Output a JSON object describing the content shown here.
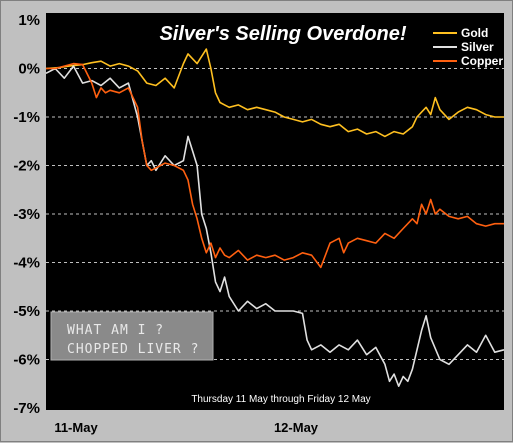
{
  "chart_data": {
    "type": "line",
    "title": "Silver's Selling Overdone!",
    "caption": "Thursday 11 May through Friday 12 May",
    "annotation": [
      "WHAT AM I ?",
      "CHOPPED LIVER ?"
    ],
    "x_labels": [
      "11-May",
      "12-May"
    ],
    "y_ticks": [
      "1%",
      "0%",
      "-1%",
      "-2%",
      "-3%",
      "-4%",
      "-5%",
      "-6%",
      "-7%"
    ],
    "ylim": [
      -7,
      1
    ],
    "xlim": [
      0,
      100
    ],
    "grid": true,
    "legend_placement": "top-right",
    "series": [
      {
        "name": "Gold",
        "color": "#ffc020",
        "x": [
          0,
          3,
          5,
          8,
          10,
          12,
          14,
          16,
          18,
          20,
          22,
          24,
          26,
          28,
          30,
          31,
          33,
          35,
          36,
          37,
          38,
          39,
          40,
          42,
          44,
          46,
          48,
          50,
          52,
          54,
          56,
          58,
          60,
          62,
          64,
          66,
          68,
          70,
          72,
          74,
          76,
          78,
          80,
          81,
          82,
          83,
          84,
          85,
          86,
          88,
          90,
          92,
          94,
          96,
          98,
          100
        ],
        "values": [
          0.0,
          0.02,
          0.05,
          0.08,
          0.12,
          0.15,
          0.05,
          0.1,
          0.05,
          -0.05,
          -0.3,
          -0.35,
          -0.2,
          -0.4,
          0.1,
          0.3,
          0.1,
          0.4,
          0.0,
          -0.5,
          -0.7,
          -0.75,
          -0.8,
          -0.75,
          -0.85,
          -0.8,
          -0.85,
          -0.9,
          -1.0,
          -1.05,
          -1.1,
          -1.05,
          -1.15,
          -1.2,
          -1.15,
          -1.3,
          -1.25,
          -1.35,
          -1.3,
          -1.4,
          -1.3,
          -1.35,
          -1.2,
          -1.0,
          -0.9,
          -0.8,
          -0.95,
          -0.6,
          -0.85,
          -1.05,
          -0.9,
          -0.8,
          -0.85,
          -0.95,
          -1.0,
          -1.0
        ]
      },
      {
        "name": "Silver",
        "color": "#e0e0e0",
        "x": [
          0,
          2,
          4,
          6,
          8,
          10,
          12,
          14,
          16,
          18,
          20,
          21,
          22,
          23,
          24,
          26,
          28,
          30,
          31,
          32,
          33,
          34,
          35,
          36,
          37,
          38,
          39,
          40,
          42,
          44,
          46,
          48,
          50,
          52,
          54,
          56,
          57,
          58,
          60,
          62,
          64,
          66,
          68,
          70,
          72,
          74,
          75,
          76,
          77,
          78,
          79,
          80,
          81,
          82,
          83,
          84,
          86,
          88,
          90,
          92,
          94,
          96,
          98,
          100
        ],
        "values": [
          -0.1,
          0.0,
          -0.2,
          0.05,
          -0.3,
          -0.25,
          -0.35,
          -0.2,
          -0.4,
          -0.3,
          -1.0,
          -1.5,
          -2.0,
          -1.9,
          -2.1,
          -1.8,
          -2.0,
          -1.9,
          -1.4,
          -1.7,
          -2.0,
          -3.0,
          -3.3,
          -3.8,
          -4.4,
          -4.6,
          -4.3,
          -4.7,
          -5.0,
          -4.8,
          -4.95,
          -4.85,
          -5.0,
          -5.0,
          -5.0,
          -5.05,
          -5.6,
          -5.8,
          -5.7,
          -5.85,
          -5.7,
          -5.8,
          -5.6,
          -5.9,
          -5.75,
          -6.1,
          -6.45,
          -6.3,
          -6.55,
          -6.35,
          -6.45,
          -6.2,
          -5.8,
          -5.4,
          -5.1,
          -5.55,
          -6.0,
          -6.1,
          -5.9,
          -5.7,
          -5.85,
          -5.5,
          -5.85,
          -5.8
        ]
      },
      {
        "name": "Copper",
        "color": "#ff6010",
        "x": [
          0,
          2,
          4,
          6,
          8,
          10,
          11,
          12,
          13,
          14,
          16,
          18,
          20,
          21,
          22,
          23,
          24,
          26,
          28,
          30,
          31,
          32,
          33,
          34,
          35,
          36,
          37,
          38,
          39,
          40,
          42,
          44,
          46,
          48,
          50,
          52,
          54,
          56,
          58,
          60,
          62,
          64,
          65,
          66,
          68,
          70,
          72,
          74,
          76,
          78,
          80,
          81,
          82,
          83,
          84,
          85,
          86,
          88,
          90,
          92,
          94,
          96,
          98,
          100
        ],
        "values": [
          0.0,
          0.0,
          0.05,
          0.1,
          0.08,
          -0.3,
          -0.6,
          -0.4,
          -0.5,
          -0.45,
          -0.5,
          -0.4,
          -0.8,
          -1.5,
          -2.0,
          -2.1,
          -2.05,
          -1.95,
          -2.0,
          -2.1,
          -2.3,
          -2.8,
          -3.1,
          -3.5,
          -3.8,
          -3.6,
          -3.9,
          -3.7,
          -3.85,
          -3.9,
          -3.75,
          -3.95,
          -3.85,
          -3.9,
          -3.85,
          -3.95,
          -3.9,
          -3.8,
          -3.85,
          -4.1,
          -3.6,
          -3.5,
          -3.8,
          -3.6,
          -3.5,
          -3.55,
          -3.6,
          -3.4,
          -3.5,
          -3.3,
          -3.1,
          -3.2,
          -2.8,
          -3.0,
          -2.7,
          -3.0,
          -2.9,
          -3.05,
          -3.1,
          -3.05,
          -3.2,
          -3.25,
          -3.2,
          -3.2
        ]
      }
    ]
  }
}
